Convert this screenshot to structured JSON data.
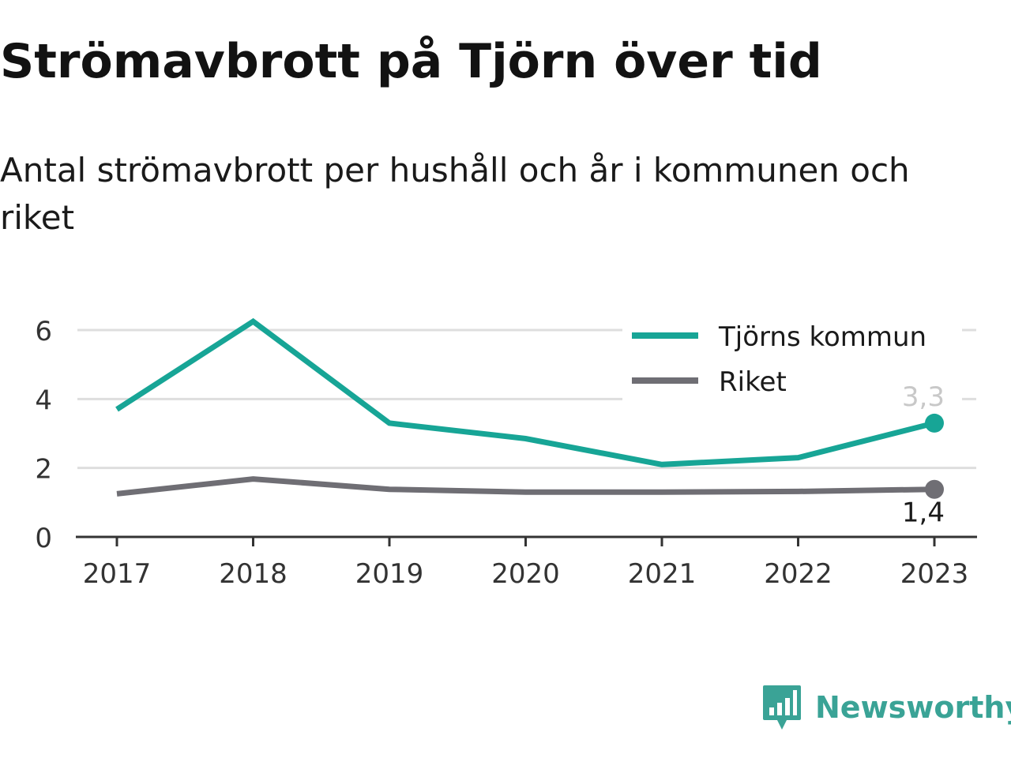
{
  "title": "Strömavbrott på Tjörn över tid",
  "subtitle": "Antal strömavbrott per hushåll och år i kommunen och riket",
  "brand": "Newsworthy",
  "colors": {
    "tjorn": "#17a596",
    "riket": "#6f6e74",
    "grid": "#dedede",
    "axis": "#333333",
    "label_light": "#c8c8c8",
    "brand": "#3aa396"
  },
  "chart_data": {
    "type": "line",
    "categories": [
      "2017",
      "2018",
      "2019",
      "2020",
      "2021",
      "2022",
      "2023"
    ],
    "series": [
      {
        "name": "Tjörns kommun",
        "values": [
          3.7,
          6.25,
          3.3,
          2.85,
          2.1,
          2.3,
          3.3
        ],
        "end_label": "3,3"
      },
      {
        "name": "Riket",
        "values": [
          1.25,
          1.68,
          1.38,
          1.3,
          1.3,
          1.32,
          1.38
        ],
        "end_label": "1,4"
      }
    ],
    "y_ticks": [
      "0",
      "2",
      "4",
      "6"
    ],
    "ylim": [
      0,
      6
    ],
    "xlabel": "",
    "ylabel": "",
    "grid": true,
    "legend": "top-right"
  }
}
